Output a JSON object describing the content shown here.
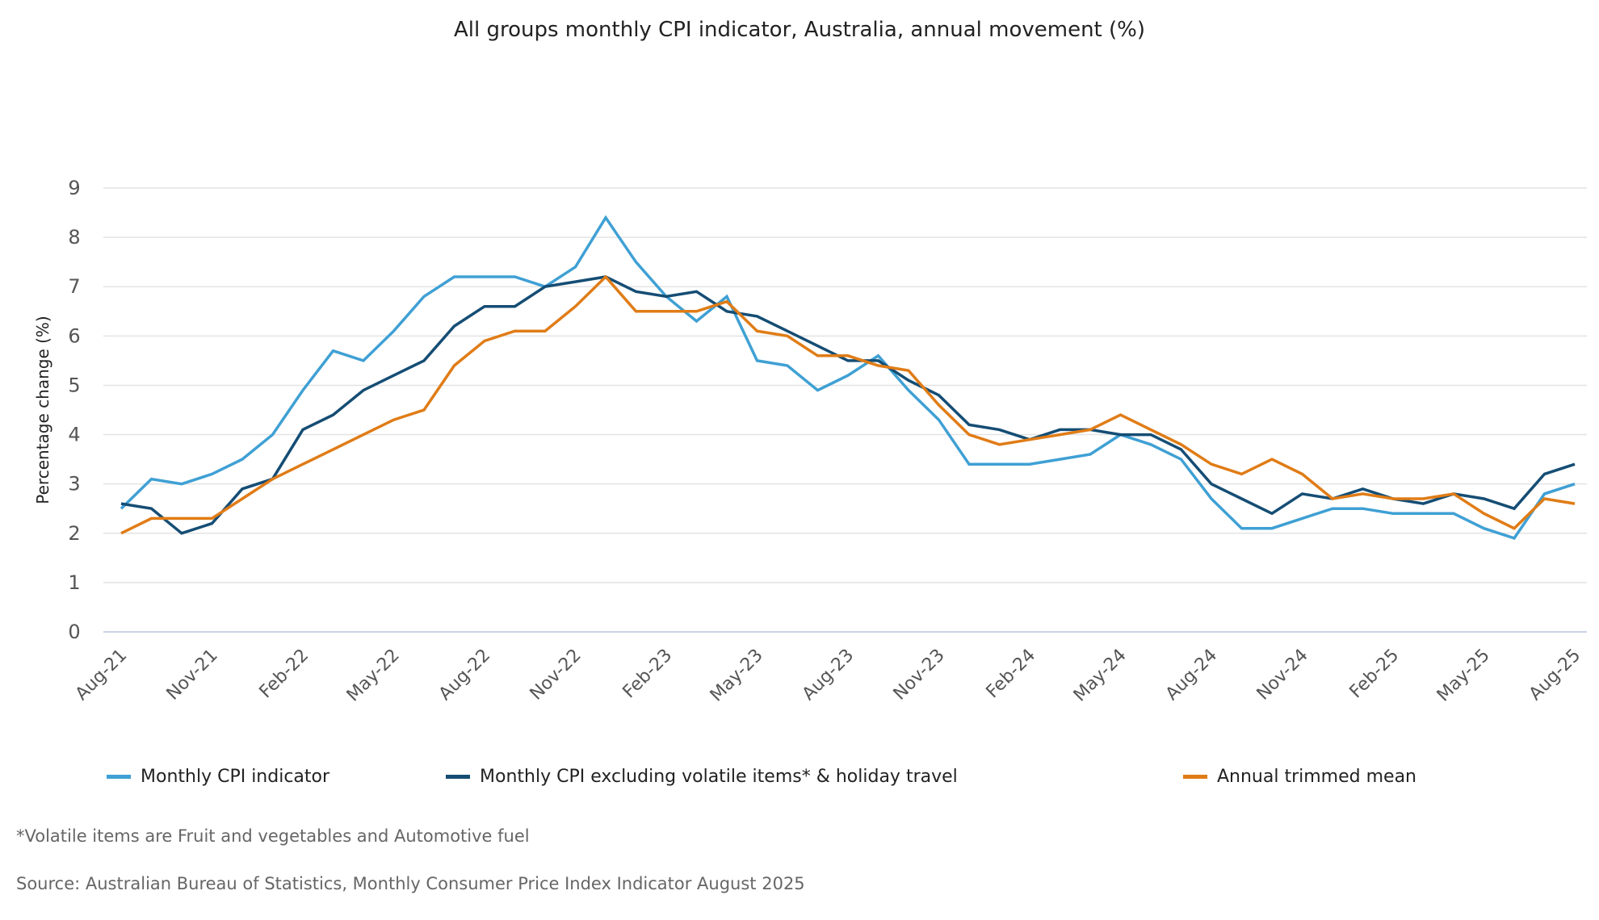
{
  "chart_data": {
    "type": "line",
    "title": "All groups monthly CPI indicator, Australia, annual movement (%)",
    "xlabel": "",
    "ylabel": "Percentage change (%)",
    "ylim": [
      0,
      9
    ],
    "yticks": [
      "0",
      "1",
      "2",
      "3",
      "4",
      "5",
      "6",
      "7",
      "8",
      "9"
    ],
    "grid": true,
    "legend_position": "bottom",
    "x": [
      "Aug-21",
      "Sep-21",
      "Oct-21",
      "Nov-21",
      "Dec-21",
      "Jan-22",
      "Feb-22",
      "Mar-22",
      "Apr-22",
      "May-22",
      "Jun-22",
      "Jul-22",
      "Aug-22",
      "Sep-22",
      "Oct-22",
      "Nov-22",
      "Dec-22",
      "Jan-23",
      "Feb-23",
      "Mar-23",
      "Apr-23",
      "May-23",
      "Jun-23",
      "Jul-23",
      "Aug-23",
      "Sep-23",
      "Oct-23",
      "Nov-23",
      "Dec-23",
      "Jan-24",
      "Feb-24",
      "Mar-24",
      "Apr-24",
      "May-24",
      "Jun-24",
      "Jul-24",
      "Aug-24",
      "Sep-24",
      "Oct-24",
      "Nov-24",
      "Dec-24",
      "Jan-25",
      "Feb-25",
      "Mar-25",
      "Apr-25",
      "May-25",
      "Jun-25",
      "Jul-25",
      "Aug-25"
    ],
    "xtick_labels": [
      "Aug-21",
      "Nov-21",
      "Feb-22",
      "May-22",
      "Aug-22",
      "Nov-22",
      "Feb-23",
      "May-23",
      "Aug-23",
      "Nov-23",
      "Feb-24",
      "May-24",
      "Aug-24",
      "Nov-24",
      "Feb-25",
      "May-25",
      "Aug-25"
    ],
    "series": [
      {
        "name": "Monthly CPI indicator",
        "color": "#3fa0d4",
        "values": [
          2.5,
          3.1,
          3.0,
          3.2,
          3.5,
          4.0,
          4.9,
          5.7,
          5.5,
          6.1,
          6.8,
          7.2,
          7.2,
          7.2,
          7.0,
          7.4,
          8.4,
          7.5,
          6.8,
          6.3,
          6.8,
          5.5,
          5.4,
          4.9,
          5.2,
          5.6,
          4.9,
          4.3,
          3.4,
          3.4,
          3.4,
          3.5,
          3.6,
          4.0,
          3.8,
          3.5,
          2.7,
          2.1,
          2.1,
          2.3,
          2.5,
          2.5,
          2.4,
          2.4,
          2.4,
          2.1,
          1.9,
          2.8,
          3.0
        ]
      },
      {
        "name": "Monthly CPI excluding volatile items* & holiday travel",
        "color": "#154d74",
        "values": [
          2.6,
          2.5,
          2.0,
          2.2,
          2.9,
          3.1,
          4.1,
          4.4,
          4.9,
          5.2,
          5.5,
          6.2,
          6.6,
          6.6,
          7.0,
          7.1,
          7.2,
          6.9,
          6.8,
          6.9,
          6.5,
          6.4,
          6.1,
          5.8,
          5.5,
          5.5,
          5.1,
          4.8,
          4.2,
          4.1,
          3.9,
          4.1,
          4.1,
          4.0,
          4.0,
          3.7,
          3.0,
          2.7,
          2.4,
          2.8,
          2.7,
          2.9,
          2.7,
          2.6,
          2.8,
          2.7,
          2.5,
          3.2,
          3.4
        ]
      },
      {
        "name": "Annual trimmed mean",
        "color": "#e07c16",
        "values": [
          2.0,
          2.3,
          2.3,
          2.3,
          2.7,
          3.1,
          3.4,
          3.7,
          4.0,
          4.3,
          4.5,
          5.4,
          5.9,
          6.1,
          6.1,
          6.6,
          7.2,
          6.5,
          6.5,
          6.5,
          6.7,
          6.1,
          6.0,
          5.6,
          5.6,
          5.4,
          5.3,
          4.6,
          4.0,
          3.8,
          3.9,
          4.0,
          4.1,
          4.4,
          4.1,
          3.8,
          3.4,
          3.2,
          3.5,
          3.2,
          2.7,
          2.8,
          2.7,
          2.7,
          2.8,
          2.4,
          2.1,
          2.7,
          2.6
        ]
      }
    ],
    "annotations": [
      "*Volatile items are Fruit and vegetables and Automotive fuel",
      "Source: Australian Bureau of Statistics, Monthly Consumer Price Index Indicator August 2025"
    ]
  }
}
